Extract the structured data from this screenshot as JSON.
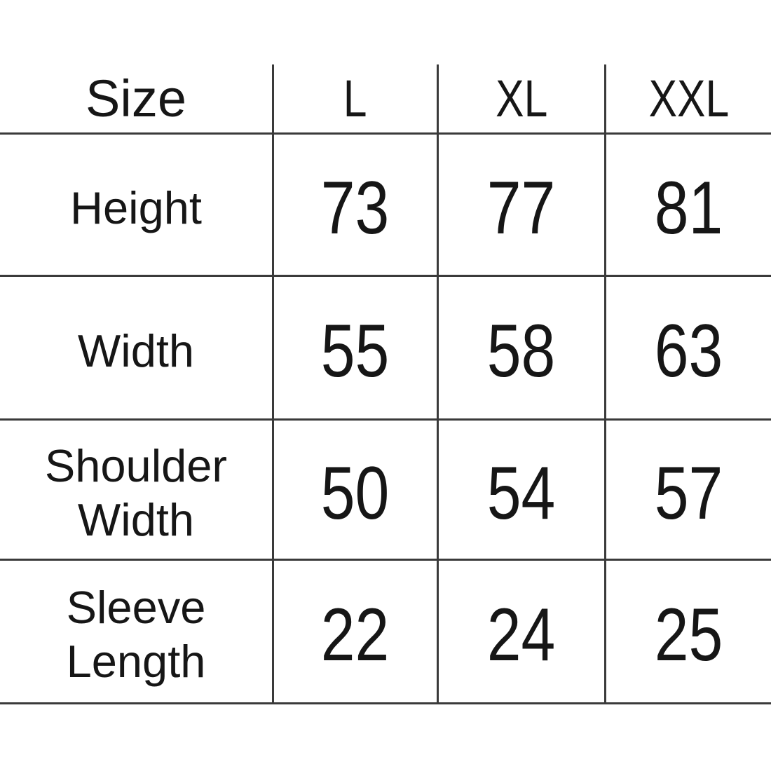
{
  "table": {
    "header": {
      "label": "Size",
      "columns": [
        "L",
        "XL",
        "XXL"
      ]
    },
    "rows": [
      {
        "label": "Height",
        "values": [
          "73",
          "77",
          "81"
        ]
      },
      {
        "label": "Width",
        "values": [
          "55",
          "58",
          "63"
        ]
      },
      {
        "label": "Shoulder Width",
        "values": [
          "50",
          "54",
          "57"
        ]
      },
      {
        "label": "Sleeve Length",
        "values": [
          "22",
          "24",
          "25"
        ]
      }
    ]
  },
  "colors": {
    "background": "#ffffff",
    "text": "#161616",
    "grid_line": "#3a3a3a"
  },
  "chart_data": {
    "type": "table",
    "columns": [
      "Size",
      "L",
      "XL",
      "XXL"
    ],
    "rows": [
      [
        "Height",
        73,
        77,
        81
      ],
      [
        "Width",
        55,
        58,
        63
      ],
      [
        "Shoulder Width",
        50,
        54,
        57
      ],
      [
        "Sleeve Length",
        22,
        24,
        25
      ]
    ],
    "layout_hints": {
      "header_row": true,
      "outer_border": "bottom-only",
      "inner_grid": true,
      "units_shown": false
    }
  }
}
